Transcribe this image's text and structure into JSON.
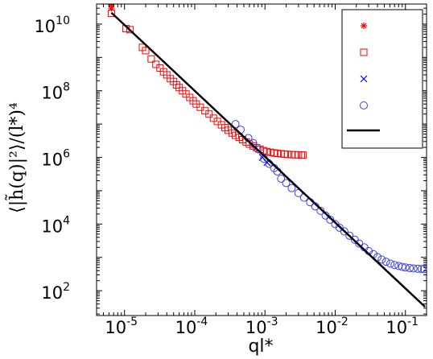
{
  "chart_data": {
    "type": "scatter",
    "title": "",
    "xlabel": "ql*",
    "ylabel": "⟨|h̃(q)|²⟩/(l*)⁴",
    "xscale": "log",
    "yscale": "log",
    "xlim": [
      4e-06,
      0.2
    ],
    "ylim": [
      18,
      40000000000
    ],
    "x_ticks": [
      {
        "base": "10",
        "exp": "-5",
        "value": 1e-05
      },
      {
        "base": "10",
        "exp": "-4",
        "value": 0.0001
      },
      {
        "base": "10",
        "exp": "-3",
        "value": 0.001
      },
      {
        "base": "10",
        "exp": "-2",
        "value": 0.01
      },
      {
        "base": "10",
        "exp": "-1",
        "value": 0.1
      }
    ],
    "y_ticks": [
      {
        "base": "10",
        "exp": "2",
        "value": 100
      },
      {
        "base": "10",
        "exp": "4",
        "value": 10000
      },
      {
        "base": "10",
        "exp": "6",
        "value": 1000000
      },
      {
        "base": "10",
        "exp": "8",
        "value": 100000000
      },
      {
        "base": "10",
        "exp": "10",
        "value": 10000000000
      }
    ],
    "grid": false,
    "legend": {
      "position": "top-right"
    },
    "series": [
      {
        "marker": "asterisk",
        "color": "#ff0000",
        "points": [
          [
            6.5e-06,
            30000000000
          ],
          [
            6.5e-06,
            38000000000
          ]
        ]
      },
      {
        "marker": "square",
        "color": "#ff0000",
        "points": [
          [
            6.5e-06,
            21000000000
          ],
          [
            1.05e-05,
            7300000000
          ],
          [
            1.2e-05,
            6800000000
          ],
          [
            1.8e-05,
            2000000000
          ],
          [
            2e-05,
            1600000000
          ],
          [
            2.4e-05,
            900000000
          ],
          [
            2.8e-05,
            620000000
          ],
          [
            3.2e-05,
            480000000
          ],
          [
            3.6e-05,
            370000000
          ],
          [
            4e-05,
            300000000
          ],
          [
            4.5e-05,
            230000000
          ],
          [
            5e-05,
            190000000
          ],
          [
            5.5e-05,
            150000000
          ],
          [
            6e-05,
            125000000
          ],
          [
            6.7e-05,
            100000000
          ],
          [
            7.5e-05,
            80000000
          ],
          [
            8.5e-05,
            63000000
          ],
          [
            9.5e-05,
            50000000
          ],
          [
            0.000105,
            40000000
          ],
          [
            0.00012,
            32000000
          ],
          [
            0.00014,
            25000000
          ],
          [
            0.00016,
            20000000
          ],
          [
            0.000185,
            15000000
          ],
          [
            0.00021,
            12000000
          ],
          [
            0.00024,
            9500000
          ],
          [
            0.00027,
            7800000
          ],
          [
            0.0003,
            6500000
          ],
          [
            0.00034,
            5400000
          ],
          [
            0.00038,
            4600000
          ],
          [
            0.00043,
            4000000
          ],
          [
            0.00048,
            3400000
          ],
          [
            0.00054,
            2900000
          ],
          [
            0.0006,
            2500000
          ],
          [
            0.00068,
            2200000
          ],
          [
            0.00076,
            1950000
          ],
          [
            0.00085,
            1750000
          ],
          [
            0.00095,
            1600000
          ],
          [
            0.00106,
            1500000
          ],
          [
            0.0012,
            1420000
          ],
          [
            0.00135,
            1360000
          ],
          [
            0.0015,
            1320000
          ],
          [
            0.0017,
            1280000
          ],
          [
            0.0019,
            1250000
          ],
          [
            0.0021,
            1230000
          ],
          [
            0.0024,
            1210000
          ],
          [
            0.0027,
            1200000
          ],
          [
            0.003,
            1190000
          ],
          [
            0.0033,
            1180000
          ],
          [
            0.0035,
            1170000
          ]
        ]
      },
      {
        "marker": "x",
        "color": "#0000ff",
        "points": [
          [
            0.00092,
            1000000
          ],
          [
            0.00107,
            700000
          ]
        ]
      },
      {
        "marker": "circle",
        "color": "#3a3aff",
        "points": [
          [
            0.00038,
            10000000
          ],
          [
            0.00045,
            6800000
          ],
          [
            0.00058,
            3800000
          ],
          [
            0.00068,
            2700000
          ],
          [
            0.0008,
            1750000
          ],
          [
            0.00097,
            900000
          ],
          [
            0.00115,
            640000
          ],
          [
            0.00135,
            480000
          ],
          [
            0.0015,
            380000
          ],
          [
            0.0017,
            230000
          ],
          [
            0.002,
            170000
          ],
          [
            0.0024,
            120000
          ],
          [
            0.003,
            85000
          ],
          [
            0.0036,
            62000
          ],
          [
            0.0044,
            45000
          ],
          [
            0.0052,
            34000
          ],
          [
            0.0062,
            25000
          ],
          [
            0.0073,
            18000
          ],
          [
            0.0085,
            13500
          ],
          [
            0.01,
            10000
          ],
          [
            0.0115,
            7800
          ],
          [
            0.0135,
            6000
          ],
          [
            0.016,
            4500
          ],
          [
            0.019,
            3400
          ],
          [
            0.022,
            2600
          ],
          [
            0.026,
            2000
          ],
          [
            0.03,
            1550
          ],
          [
            0.035,
            1250
          ],
          [
            0.04,
            1020
          ],
          [
            0.046,
            860
          ],
          [
            0.053,
            740
          ],
          [
            0.061,
            650
          ],
          [
            0.07,
            590
          ],
          [
            0.08,
            550
          ],
          [
            0.09,
            520
          ],
          [
            0.1,
            500
          ],
          [
            0.115,
            480
          ],
          [
            0.13,
            465
          ],
          [
            0.15,
            455
          ],
          [
            0.17,
            450
          ],
          [
            0.185,
            445
          ]
        ]
      },
      {
        "marker": "line",
        "color": "#000000",
        "points": [
          [
            6.5e-06,
            22000000000
          ],
          [
            0.19,
            33
          ]
        ]
      }
    ]
  }
}
